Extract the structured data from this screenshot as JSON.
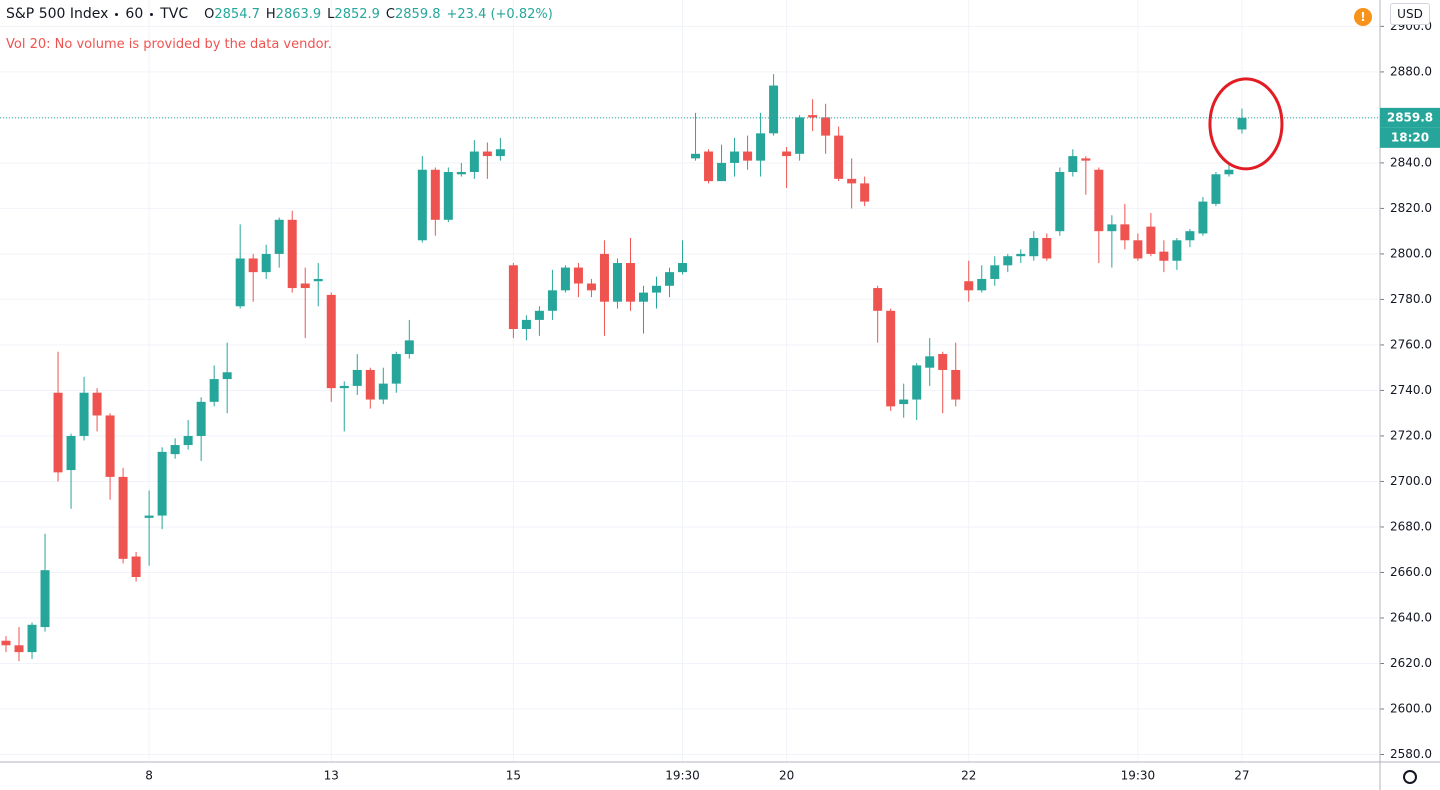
{
  "header": {
    "symbol": "S&P 500 Index",
    "interval": "60",
    "source": "TVC",
    "ohlc_labels": [
      "O",
      "H",
      "L",
      "C"
    ],
    "change": "+23.4 (+0.82%)",
    "volume_note": "Vol 20: No volume is provided by the data vendor.",
    "currency": "USD",
    "countdown": "18:20",
    "alert_icon": "!"
  },
  "chart_data": {
    "type": "candlestick",
    "up_color": "#26a69a",
    "down_color": "#ef5350",
    "categories": [
      null,
      null,
      null,
      null,
      null,
      null,
      null,
      null,
      null,
      null,
      null,
      "8",
      null,
      null,
      null,
      null,
      null,
      null,
      null,
      null,
      null,
      null,
      null,
      null,
      null,
      "13",
      null,
      null,
      null,
      null,
      null,
      null,
      null,
      null,
      null,
      null,
      null,
      null,
      null,
      "15",
      null,
      null,
      null,
      null,
      null,
      null,
      null,
      null,
      null,
      null,
      null,
      null,
      "19:30",
      null,
      null,
      null,
      null,
      null,
      null,
      null,
      "20",
      null,
      null,
      null,
      null,
      null,
      null,
      null,
      null,
      null,
      null,
      null,
      null,
      null,
      "22",
      null,
      null,
      null,
      null,
      null,
      null,
      null,
      null,
      null,
      null,
      null,
      null,
      "19:30",
      null,
      null,
      null,
      null,
      null,
      null,
      null,
      "27"
    ],
    "open": [
      2630,
      2628,
      2625,
      2636,
      2739,
      2705,
      2720,
      2739,
      2729,
      2702,
      2667,
      2684,
      2685,
      2712,
      2716,
      2720,
      2735,
      2745,
      2777,
      2798,
      2792,
      2800,
      2815,
      2787,
      2788,
      2782,
      2741,
      2742,
      2749,
      2736,
      2743,
      2756,
      2806,
      2837,
      2815,
      2835,
      2836,
      2845,
      2843,
      2795,
      2767,
      2771,
      2775,
      2784,
      2794,
      2787,
      2800,
      2779,
      2796,
      2779,
      2783,
      2786,
      2792,
      2842,
      2845,
      2832,
      2840,
      2845,
      2841,
      2853,
      2845,
      2844,
      2861,
      2860,
      2852,
      2833,
      2831,
      2785,
      2775,
      2734,
      2736,
      2750,
      2756,
      2749,
      2788,
      2784,
      2789,
      2795,
      2799,
      2799,
      2807,
      2810,
      2836,
      2842,
      2837,
      2810,
      2813,
      2806,
      2812,
      2801,
      2797,
      2806,
      2809,
      2822,
      2835,
      2854.7
    ],
    "high": [
      2632,
      2636,
      2638,
      2677,
      2757,
      2721,
      2746,
      2741,
      2730,
      2706,
      2669,
      2696,
      2715,
      2719,
      2727,
      2737,
      2751,
      2761,
      2813,
      2800,
      2804,
      2816,
      2819,
      2794,
      2796,
      2783,
      2744,
      2756,
      2750,
      2750,
      2757,
      2771,
      2843,
      2838,
      2838,
      2840,
      2850,
      2849,
      2851,
      2796,
      2773,
      2777,
      2793,
      2795,
      2796,
      2789,
      2806,
      2798,
      2807,
      2786,
      2790,
      2794,
      2806,
      2862,
      2846,
      2848,
      2851,
      2852,
      2862,
      2879,
      2847,
      2861,
      2868,
      2866,
      2856,
      2842,
      2834,
      2786,
      2776,
      2743,
      2752,
      2763,
      2757,
      2761,
      2797,
      2795,
      2799,
      2800,
      2802,
      2810,
      2809,
      2838,
      2846,
      2843,
      2838,
      2817,
      2822,
      2809,
      2818,
      2806,
      2807,
      2811,
      2825,
      2836,
      2839,
      2863.9
    ],
    "low": [
      2625,
      2621,
      2622,
      2634,
      2700,
      2688,
      2718,
      2722,
      2692,
      2664,
      2656,
      2663,
      2679,
      2710,
      2714,
      2709,
      2733,
      2730,
      2776,
      2779,
      2789,
      2794,
      2783,
      2763,
      2777,
      2735,
      2722,
      2738,
      2732,
      2734,
      2739,
      2754,
      2805,
      2808,
      2814,
      2834,
      2833,
      2833,
      2841,
      2763,
      2762,
      2764,
      2771,
      2783,
      2781,
      2781,
      2764,
      2776,
      2775,
      2765,
      2776,
      2781,
      2791,
      2841,
      2831,
      2832,
      2834,
      2837,
      2834,
      2852,
      2829,
      2841,
      2854,
      2844,
      2832,
      2820,
      2821,
      2761,
      2731,
      2728,
      2727,
      2742,
      2730,
      2733,
      2779,
      2783,
      2786,
      2792,
      2796,
      2797,
      2797,
      2808,
      2834,
      2826,
      2796,
      2794,
      2802,
      2797,
      2799,
      2792,
      2793,
      2803,
      2808,
      2821,
      2834,
      2852.9
    ],
    "close": [
      2628,
      2625,
      2637,
      2661,
      2704,
      2720,
      2739,
      2729,
      2702,
      2666,
      2658,
      2685,
      2713,
      2716,
      2720,
      2735,
      2745,
      2748,
      2798,
      2792,
      2800,
      2815,
      2785,
      2785,
      2789,
      2741,
      2742,
      2749,
      2736,
      2743,
      2756,
      2762,
      2837,
      2815,
      2836,
      2836,
      2845,
      2843,
      2846,
      2767,
      2771,
      2775,
      2784,
      2794,
      2787,
      2784,
      2779,
      2796,
      2779,
      2783,
      2786,
      2792,
      2796,
      2844,
      2832,
      2840,
      2845,
      2841,
      2853,
      2874,
      2843,
      2860,
      2860,
      2852,
      2833,
      2831,
      2823,
      2775,
      2733,
      2736,
      2751,
      2755,
      2749,
      2736,
      2784,
      2789,
      2795,
      2799,
      2800,
      2807,
      2798,
      2836,
      2843,
      2841,
      2810,
      2813,
      2806,
      2798,
      2800,
      2797,
      2806,
      2810,
      2823,
      2835,
      2837,
      2859.8
    ],
    "ylim": [
      2576.7,
      2911.6
    ],
    "yticks": [
      {
        "value": 2580,
        "label": "2580.0"
      },
      {
        "value": 2600,
        "label": "2600.0"
      },
      {
        "value": 2620,
        "label": "2620.0"
      },
      {
        "value": 2640,
        "label": "2640.0"
      },
      {
        "value": 2660,
        "label": "2660.0"
      },
      {
        "value": 2680,
        "label": "2680.0"
      },
      {
        "value": 2700,
        "label": "2700.0"
      },
      {
        "value": 2720,
        "label": "2720.0"
      },
      {
        "value": 2740,
        "label": "2740.0"
      },
      {
        "value": 2760,
        "label": "2760.0"
      },
      {
        "value": 2780,
        "label": "2780.0"
      },
      {
        "value": 2800,
        "label": "2800.0"
      },
      {
        "value": 2820,
        "label": "2820.0"
      },
      {
        "value": 2840,
        "label": "2840.0"
      },
      {
        "value": 2860,
        "label": "2860.0"
      },
      {
        "value": 2880,
        "label": "2880.0"
      },
      {
        "value": 2900,
        "label": "2900.0"
      }
    ],
    "grid": true
  }
}
